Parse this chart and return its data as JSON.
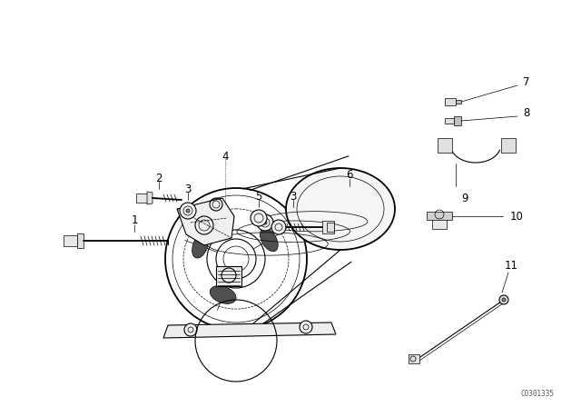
{
  "bg_color": "#ffffff",
  "line_color": "#000000",
  "watermark": "C0301335",
  "fig_width": 6.4,
  "fig_height": 4.48,
  "dpi": 100,
  "lw": 0.8,
  "lw_bold": 1.3,
  "lw_thin": 0.5,
  "label_fs": 8.5
}
